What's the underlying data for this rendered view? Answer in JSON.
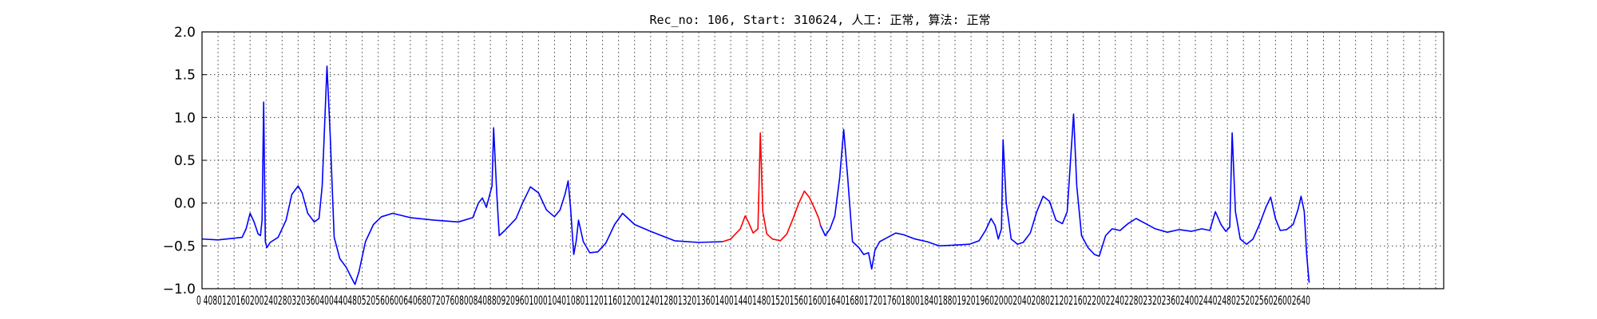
{
  "chart_data": {
    "type": "line",
    "title": "Rec_no: 106, Start: 310624, 人工: 正常, 算法: 正常",
    "xlabel": "",
    "ylabel": "",
    "xlim": [
      0,
      1550
    ],
    "ylim": [
      -1.0,
      2.0
    ],
    "yticks": [
      "2.0",
      "1.5",
      "1.0",
      "0.5",
      "0.0",
      "−0.5",
      "−1.0"
    ],
    "ytick_values": [
      2.0,
      1.5,
      1.0,
      0.5,
      0.0,
      -0.5,
      -1.0
    ],
    "xtick_step": 20,
    "xtick_labels_printed": "0 4080120160200240280320360400440480520560600640680720760800840880920960100010401080112011601200124012801320136014001440148015201560160016401680172017601800184018801920196020002040208021202160220022402280232023602400244024802520256026002640",
    "grid": true,
    "series": [
      {
        "color": "#0000ff",
        "points": [
          [
            0,
            -0.42
          ],
          [
            20,
            -0.43
          ],
          [
            40,
            -0.41
          ],
          [
            50,
            -0.4
          ],
          [
            55,
            -0.3
          ],
          [
            60,
            -0.12
          ],
          [
            65,
            -0.22
          ],
          [
            70,
            -0.36
          ],
          [
            73,
            -0.38
          ],
          [
            75,
            -0.2
          ],
          [
            77,
            1.18
          ],
          [
            79,
            -0.45
          ],
          [
            81,
            -0.52
          ],
          [
            85,
            -0.46
          ],
          [
            95,
            -0.4
          ],
          [
            105,
            -0.2
          ],
          [
            112,
            0.1
          ],
          [
            120,
            0.2
          ],
          [
            125,
            0.12
          ],
          [
            132,
            -0.12
          ],
          [
            140,
            -0.22
          ],
          [
            146,
            -0.18
          ],
          [
            150,
            0.2
          ],
          [
            156,
            1.6
          ],
          [
            160,
            0.8
          ],
          [
            165,
            -0.4
          ],
          [
            172,
            -0.65
          ],
          [
            180,
            -0.75
          ],
          [
            187,
            -0.88
          ],
          [
            191,
            -0.95
          ],
          [
            196,
            -0.8
          ],
          [
            204,
            -0.45
          ],
          [
            214,
            -0.25
          ],
          [
            224,
            -0.16
          ],
          [
            238,
            -0.12
          ],
          [
            260,
            -0.17
          ],
          [
            290,
            -0.2
          ],
          [
            320,
            -0.22
          ],
          [
            338,
            -0.17
          ],
          [
            345,
            0.0
          ],
          [
            350,
            0.06
          ],
          [
            355,
            -0.05
          ],
          [
            362,
            0.2
          ],
          [
            364,
            0.88
          ],
          [
            368,
            0.1
          ],
          [
            371,
            -0.38
          ],
          [
            378,
            -0.32
          ],
          [
            392,
            -0.18
          ],
          [
            400,
            0.0
          ],
          [
            410,
            0.19
          ],
          [
            420,
            0.12
          ],
          [
            430,
            -0.08
          ],
          [
            440,
            -0.16
          ],
          [
            447,
            -0.08
          ],
          [
            453,
            0.1
          ],
          [
            457,
            0.26
          ],
          [
            460,
            -0.05
          ],
          [
            464,
            -0.6
          ],
          [
            467,
            -0.45
          ],
          [
            470,
            -0.2
          ],
          [
            476,
            -0.45
          ],
          [
            484,
            -0.58
          ],
          [
            494,
            -0.57
          ],
          [
            504,
            -0.47
          ],
          [
            515,
            -0.25
          ],
          [
            525,
            -0.12
          ],
          [
            540,
            -0.25
          ],
          [
            560,
            -0.33
          ],
          [
            590,
            -0.44
          ],
          [
            620,
            -0.46
          ],
          [
            650,
            -0.45
          ]
        ]
      },
      {
        "color": "#ff0000",
        "points": [
          [
            650,
            -0.45
          ],
          [
            660,
            -0.42
          ],
          [
            672,
            -0.3
          ],
          [
            678,
            -0.15
          ],
          [
            682,
            -0.22
          ],
          [
            688,
            -0.35
          ],
          [
            694,
            -0.3
          ],
          [
            697,
            0.82
          ],
          [
            700,
            -0.1
          ],
          [
            705,
            -0.36
          ],
          [
            712,
            -0.42
          ],
          [
            722,
            -0.44
          ],
          [
            730,
            -0.36
          ],
          [
            737,
            -0.2
          ],
          [
            745,
            0.0
          ],
          [
            752,
            0.14
          ],
          [
            758,
            0.07
          ],
          [
            764,
            -0.05
          ],
          [
            770,
            -0.18
          ],
          [
            772,
            -0.26
          ]
        ]
      },
      {
        "color": "#0000ff",
        "points": [
          [
            772,
            -0.26
          ],
          [
            778,
            -0.38
          ],
          [
            784,
            -0.3
          ],
          [
            790,
            -0.15
          ],
          [
            796,
            0.3
          ],
          [
            801,
            0.86
          ],
          [
            806,
            0.3
          ],
          [
            812,
            -0.45
          ],
          [
            820,
            -0.52
          ],
          [
            826,
            -0.6
          ],
          [
            832,
            -0.58
          ],
          [
            836,
            -0.77
          ],
          [
            840,
            -0.55
          ],
          [
            846,
            -0.45
          ],
          [
            856,
            -0.4
          ],
          [
            866,
            -0.35
          ],
          [
            876,
            -0.37
          ],
          [
            890,
            -0.42
          ],
          [
            905,
            -0.45
          ],
          [
            920,
            -0.5
          ],
          [
            940,
            -0.49
          ],
          [
            958,
            -0.48
          ],
          [
            970,
            -0.44
          ],
          [
            978,
            -0.32
          ],
          [
            985,
            -0.18
          ],
          [
            990,
            -0.26
          ],
          [
            994,
            -0.42
          ],
          [
            998,
            -0.3
          ],
          [
            1000,
            0.74
          ],
          [
            1004,
            0.0
          ],
          [
            1010,
            -0.42
          ],
          [
            1018,
            -0.48
          ],
          [
            1025,
            -0.46
          ],
          [
            1034,
            -0.35
          ],
          [
            1042,
            -0.1
          ],
          [
            1050,
            0.08
          ],
          [
            1058,
            0.02
          ],
          [
            1066,
            -0.2
          ],
          [
            1074,
            -0.24
          ],
          [
            1080,
            -0.1
          ],
          [
            1088,
            1.04
          ],
          [
            1092,
            0.2
          ],
          [
            1098,
            -0.38
          ],
          [
            1106,
            -0.52
          ],
          [
            1114,
            -0.6
          ],
          [
            1120,
            -0.62
          ],
          [
            1128,
            -0.38
          ],
          [
            1136,
            -0.3
          ],
          [
            1146,
            -0.32
          ],
          [
            1156,
            -0.24
          ],
          [
            1166,
            -0.18
          ],
          [
            1178,
            -0.24
          ],
          [
            1190,
            -0.3
          ],
          [
            1205,
            -0.34
          ],
          [
            1220,
            -0.31
          ],
          [
            1235,
            -0.33
          ],
          [
            1248,
            -0.3
          ],
          [
            1258,
            -0.32
          ],
          [
            1265,
            -0.1
          ],
          [
            1272,
            -0.25
          ],
          [
            1278,
            -0.33
          ],
          [
            1283,
            -0.28
          ],
          [
            1286,
            0.82
          ],
          [
            1290,
            -0.1
          ],
          [
            1296,
            -0.42
          ],
          [
            1304,
            -0.48
          ],
          [
            1312,
            -0.42
          ],
          [
            1320,
            -0.25
          ],
          [
            1328,
            -0.05
          ],
          [
            1334,
            0.07
          ],
          [
            1340,
            -0.18
          ],
          [
            1346,
            -0.32
          ],
          [
            1354,
            -0.31
          ],
          [
            1362,
            -0.25
          ],
          [
            1368,
            -0.08
          ],
          [
            1372,
            0.08
          ],
          [
            1376,
            -0.1
          ],
          [
            1379,
            -0.6
          ],
          [
            1382,
            -0.93
          ]
        ]
      }
    ]
  }
}
